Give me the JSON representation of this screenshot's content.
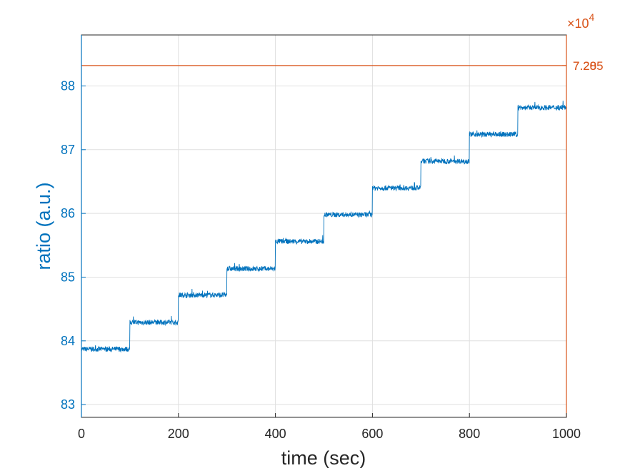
{
  "chart_data": {
    "type": "line",
    "xlabel": "time (sec)",
    "ylabel": "ratio (a.u.)",
    "ylabel_right": "",
    "xlim": [
      0,
      1000
    ],
    "ylim": [
      82.8,
      88.8
    ],
    "x_ticks": [
      "0",
      "200",
      "400",
      "600",
      "800",
      "1000"
    ],
    "y_ticks": [
      "83",
      "84",
      "85",
      "86",
      "87",
      "88"
    ],
    "y_tick_values": [
      83,
      84,
      85,
      86,
      87,
      88
    ],
    "x_tick_values": [
      0,
      200,
      400,
      600,
      800,
      1000
    ],
    "right_axis": {
      "exponent_base": "×10",
      "exponent_power": "4",
      "overlapping_tick_labels": [
        "7.205",
        "7.28"
      ]
    },
    "grid": true,
    "colors": {
      "left": "#0072BD",
      "right": "#D95319",
      "grid": "#DFDFDF",
      "axis": "#262626"
    },
    "series": [
      {
        "axis": "left",
        "color": "#0072BD",
        "step_x": [
          0,
          100,
          200,
          300,
          400,
          500,
          600,
          700,
          800,
          900,
          1000
        ],
        "step_levels": [
          83.87,
          84.29,
          84.72,
          85.13,
          85.56,
          85.98,
          86.4,
          86.82,
          87.24,
          87.66
        ],
        "noise_amplitude": 0.04
      },
      {
        "axis": "right",
        "color": "#D95319",
        "x": [
          0,
          1000
        ],
        "y_axis_fraction": 0.92
      }
    ]
  }
}
